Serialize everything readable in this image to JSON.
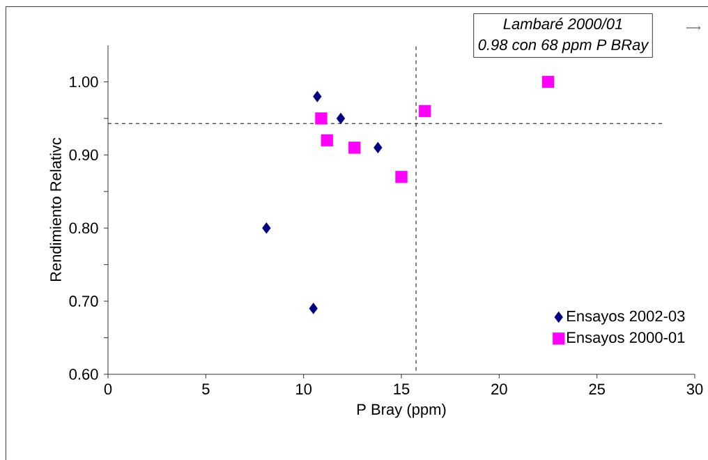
{
  "chart_data": {
    "type": "scatter",
    "xlabel": "P Bray (ppm)",
    "ylabel": "Rendimiento Relativc",
    "xlim": [
      0,
      30
    ],
    "xticks": [
      0,
      5,
      10,
      15,
      20,
      25,
      30
    ],
    "ylim": [
      0.6,
      1.05
    ],
    "yticks": [
      {
        "value": 0.6,
        "label": "0.60"
      },
      {
        "value": 0.65,
        "label": null
      },
      {
        "value": 0.7,
        "label": "0.70"
      },
      {
        "value": 0.75,
        "label": null
      },
      {
        "value": 0.8,
        "label": "0.80"
      },
      {
        "value": 0.85,
        "label": null
      },
      {
        "value": 0.9,
        "label": "0.90"
      },
      {
        "value": 0.95,
        "label": null
      },
      {
        "value": 1.0,
        "label": "1.00"
      }
    ],
    "series": [
      {
        "name": "Ensayos 2002-03",
        "color": "#000080",
        "marker": "diamond",
        "x": [
          8.1,
          10.5,
          10.7,
          11.9,
          13.8
        ],
        "values": [
          0.8,
          0.69,
          0.98,
          0.95,
          0.91
        ]
      },
      {
        "name": "Ensayos 2000-01",
        "color": "#ff00ff",
        "marker": "square",
        "x": [
          10.9,
          11.2,
          12.6,
          15.0,
          16.2,
          22.5
        ],
        "values": [
          0.95,
          0.92,
          0.91,
          0.87,
          0.96,
          1.0
        ]
      }
    ],
    "ref_lines": [
      {
        "axis": "y",
        "value": 0.943,
        "line_style": "dashed",
        "color": "#000000"
      },
      {
        "axis": "x",
        "value": 15.75,
        "line_style": "dashed",
        "color": "#000000"
      }
    ],
    "annotations": [
      "Lambaré 2000/01",
      "0.98 con 68 ppm P BRay"
    ],
    "legend": "bottom right",
    "grid": false
  }
}
